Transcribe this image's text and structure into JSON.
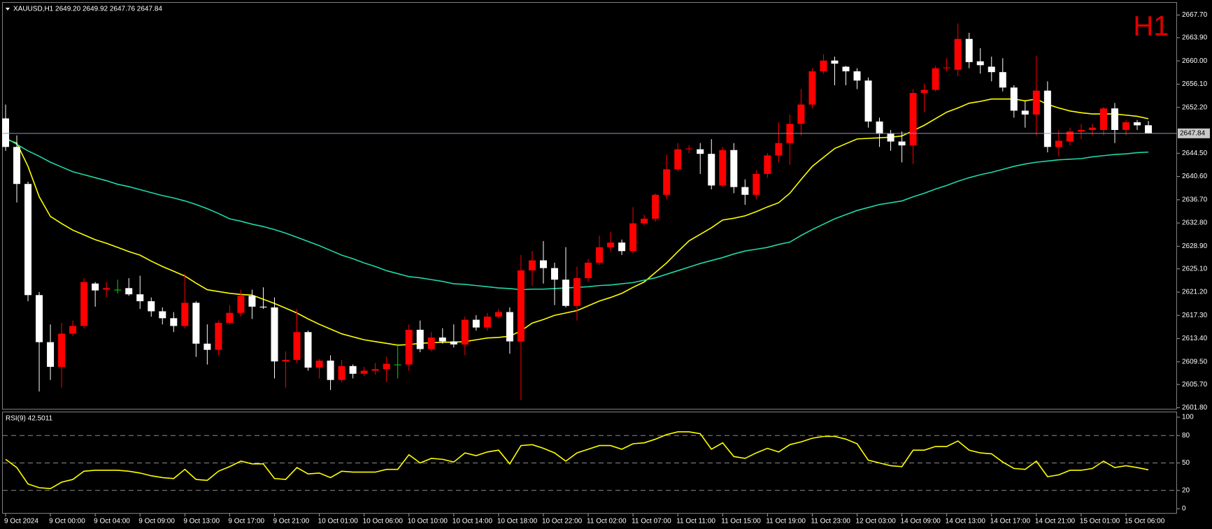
{
  "chart_data": {
    "type": "candlestick",
    "title": "XAUUSD,H1  2649.20 2649.92 2647.76 2647.84",
    "timeframe_badge": "H1",
    "categories": [
      "9 Oct 2024",
      null,
      null,
      null,
      "9 Oct 00:00",
      null,
      null,
      null,
      "9 Oct 04:00",
      null,
      null,
      null,
      "9 Oct 09:00",
      null,
      null,
      null,
      "9 Oct 13:00",
      null,
      null,
      null,
      "9 Oct 17:00",
      null,
      null,
      null,
      "9 Oct 21:00",
      null,
      null,
      null,
      "10 Oct 01:00",
      null,
      null,
      null,
      "10 Oct 06:00",
      null,
      null,
      null,
      "10 Oct 10:00",
      null,
      null,
      null,
      "10 Oct 14:00",
      null,
      null,
      null,
      "10 Oct 18:00",
      null,
      null,
      null,
      "10 Oct 22:00",
      null,
      null,
      null,
      "11 Oct 02:00",
      null,
      null,
      null,
      "11 Oct 07:00",
      null,
      null,
      null,
      "11 Oct 11:00",
      null,
      null,
      null,
      "11 Oct 15:00",
      null,
      null,
      null,
      "11 Oct 19:00",
      null,
      null,
      null,
      "11 Oct 23:00",
      null,
      null,
      null,
      "12 Oct 03:00",
      null,
      null,
      null,
      "14 Oct 09:00",
      null,
      null,
      null,
      "14 Oct 13:00",
      null,
      null,
      null,
      "14 Oct 17:00",
      null,
      null,
      null,
      "14 Oct 21:00",
      null,
      null,
      null,
      "15 Oct 01:00",
      null,
      null,
      null,
      "15 Oct 06:00",
      null,
      null
    ],
    "open": [
      2650.35,
      2645.56,
      2639.35,
      2620.7,
      2612.8,
      2608.66,
      2614.23,
      2615.52,
      2622.64,
      2621.61,
      2621.61,
      2621.87,
      2620.83,
      2619.67,
      2617.98,
      2616.82,
      2615.52,
      2619.41,
      2612.55,
      2611.51,
      2616.04,
      2617.72,
      2620.57,
      2618.76,
      2618.63,
      2609.57,
      2609.83,
      2614.49,
      2608.53,
      2609.7,
      2606.46,
      2608.79,
      2607.5,
      2608.01,
      2608.27,
      2609.05,
      2609.05,
      2614.88,
      2611.64,
      2613.58,
      2612.93,
      2612.42,
      2616.56,
      2615.26,
      2617.08,
      2617.85,
      2612.93,
      2624.85,
      2626.53,
      2625.23,
      2623.29,
      2618.89,
      2623.55,
      2626.14,
      2628.73,
      2629.51,
      2628.08,
      2632.74,
      2633.52,
      2637.53,
      2641.81,
      2645.17,
      2645.17,
      2644.4,
      2639.09,
      2645.04,
      2638.83,
      2637.53,
      2641.03,
      2644.14,
      2646.21,
      2649.44,
      2652.68,
      2658.25,
      2660.06,
      2659.03,
      2658.25,
      2656.7,
      2649.83,
      2647.76,
      2646.47,
      2645.82,
      2654.62,
      2655.14,
      2658.77,
      2658.51,
      2663.69,
      2659.93,
      2659.03,
      2658.12,
      2655.53,
      2651.65,
      2651.0,
      2655.01,
      2645.56,
      2646.47,
      2648.15,
      2648.41,
      2648.41,
      2652.03,
      2648.41,
      2649.7,
      2649.2
    ],
    "high": [
      2652.68,
      2647.5,
      2639.73,
      2621.22,
      2615.78,
      2616.04,
      2616.43,
      2623.55,
      2622.9,
      2622.9,
      2623.29,
      2623.55,
      2623.94,
      2620.31,
      2618.63,
      2617.85,
      2624.2,
      2619.67,
      2615.78,
      2616.43,
      2619.02,
      2621.61,
      2621.61,
      2622.0,
      2620.31,
      2611.25,
      2618.37,
      2614.75,
      2609.96,
      2610.6,
      2609.83,
      2609.05,
      2608.66,
      2609.31,
      2610.34,
      2612.55,
      2615.78,
      2616.43,
      2614.49,
      2615.14,
      2615.78,
      2617.08,
      2617.34,
      2617.72,
      2618.37,
      2618.63,
      2627.43,
      2628.08,
      2629.77,
      2626.14,
      2628.73,
      2625.49,
      2626.79,
      2630.67,
      2631.32,
      2630.02,
      2635.46,
      2634.17,
      2637.79,
      2644.27,
      2646.21,
      2645.82,
      2646.21,
      2646.86,
      2645.56,
      2646.21,
      2640.12,
      2641.68,
      2644.52,
      2649.7,
      2651.0,
      2655.27,
      2658.77,
      2661.1,
      2660.71,
      2659.16,
      2658.77,
      2657.21,
      2650.48,
      2648.41,
      2648.15,
      2655.27,
      2656.18,
      2659.16,
      2660.45,
      2666.28,
      2664.72,
      2662.13,
      2660.71,
      2660.45,
      2655.92,
      2653.33,
      2660.84,
      2656.57,
      2648.41,
      2648.8,
      2649.44,
      2649.44,
      2652.29,
      2652.94,
      2650.09,
      2650.09,
      2649.92
    ],
    "low": [
      2644.91,
      2636.24,
      2619.67,
      2604.52,
      2606.46,
      2605.17,
      2613.84,
      2615.14,
      2618.76,
      2620.31,
      2620.96,
      2620.57,
      2618.37,
      2617.08,
      2615.78,
      2614.49,
      2615.14,
      2610.34,
      2609.05,
      2610.6,
      2615.78,
      2617.08,
      2616.69,
      2618.37,
      2606.72,
      2605.17,
      2609.31,
      2608.01,
      2606.72,
      2604.78,
      2606.07,
      2606.72,
      2607.11,
      2607.37,
      2606.07,
      2606.72,
      2608.01,
      2611.12,
      2611.25,
      2612.55,
      2611.9,
      2610.6,
      2614.75,
      2614.75,
      2616.82,
      2610.86,
      2603.09,
      2622.26,
      2622.64,
      2619.02,
      2618.63,
      2616.43,
      2622.9,
      2625.75,
      2628.08,
      2627.43,
      2627.69,
      2632.35,
      2633.0,
      2636.76,
      2641.42,
      2644.52,
      2641.03,
      2638.44,
      2638.83,
      2637.79,
      2635.85,
      2636.76,
      2640.38,
      2642.97,
      2642.58,
      2647.5,
      2652.03,
      2657.86,
      2655.92,
      2655.92,
      2655.27,
      2648.8,
      2645.56,
      2644.91,
      2642.97,
      2642.71,
      2651.39,
      2654.88,
      2658.25,
      2657.47,
      2658.77,
      2657.86,
      2656.57,
      2654.88,
      2650.48,
      2648.8,
      2647.5,
      2644.65,
      2644.01,
      2645.82,
      2646.86,
      2647.5,
      2647.5,
      2646.21,
      2647.5,
      2648.41,
      2647.76
    ],
    "close": [
      2645.56,
      2639.35,
      2620.7,
      2612.8,
      2608.66,
      2614.23,
      2615.52,
      2622.9,
      2621.48,
      2621.87,
      2621.61,
      2620.83,
      2619.67,
      2617.98,
      2616.82,
      2615.52,
      2619.41,
      2612.55,
      2611.51,
      2616.04,
      2617.72,
      2620.57,
      2618.76,
      2618.63,
      2609.57,
      2609.83,
      2614.49,
      2608.53,
      2609.7,
      2606.46,
      2608.79,
      2607.5,
      2608.01,
      2608.27,
      2609.18,
      2609.05,
      2614.88,
      2611.64,
      2613.58,
      2612.93,
      2612.42,
      2616.56,
      2615.26,
      2617.08,
      2617.85,
      2612.93,
      2624.85,
      2626.53,
      2625.23,
      2623.29,
      2618.89,
      2623.55,
      2626.14,
      2628.73,
      2629.51,
      2628.08,
      2632.74,
      2633.52,
      2637.53,
      2641.81,
      2645.17,
      2645.3,
      2644.4,
      2639.09,
      2645.04,
      2638.83,
      2637.53,
      2641.03,
      2644.14,
      2646.21,
      2649.44,
      2652.68,
      2658.25,
      2660.06,
      2659.54,
      2658.25,
      2656.7,
      2649.83,
      2647.76,
      2646.47,
      2645.82,
      2654.62,
      2655.14,
      2658.77,
      2658.9,
      2663.69,
      2659.8,
      2659.28,
      2658.12,
      2655.53,
      2651.65,
      2651.0,
      2655.01,
      2645.56,
      2646.6,
      2648.15,
      2648.41,
      2648.8,
      2652.03,
      2648.41,
      2649.7,
      2649.19,
      2647.84
    ],
    "up_color": "#ff0000",
    "down_color": "#ffffff",
    "doji_color": "#00e000",
    "moving_averages": [
      {
        "color": "#ffff00",
        "values": [
          2646.9,
          2646.2,
          2642.3,
          2637.2,
          2633.9,
          2632.7,
          2631.6,
          2630.8,
          2630.0,
          2629.4,
          2628.7,
          2628.0,
          2627.4,
          2626.4,
          2625.5,
          2624.7,
          2623.9,
          2622.7,
          2621.6,
          2621.3,
          2621.0,
          2620.8,
          2620.7,
          2620.0,
          2619.3,
          2618.5,
          2617.7,
          2616.7,
          2615.8,
          2615.0,
          2614.2,
          2613.7,
          2613.2,
          2612.9,
          2612.6,
          2612.3,
          2612.4,
          2612.6,
          2612.7,
          2612.8,
          2612.8,
          2612.9,
          2613.2,
          2613.5,
          2613.6,
          2613.8,
          2614.7,
          2616.0,
          2616.6,
          2617.3,
          2617.7,
          2618.1,
          2618.9,
          2619.7,
          2620.3,
          2621.0,
          2622.0,
          2622.9,
          2624.5,
          2626.1,
          2628.0,
          2629.8,
          2630.9,
          2632.0,
          2633.3,
          2633.6,
          2634.0,
          2634.7,
          2635.5,
          2636.2,
          2637.8,
          2640.1,
          2642.3,
          2643.8,
          2645.3,
          2646.1,
          2646.9,
          2647.0,
          2647.1,
          2647.2,
          2647.4,
          2648.3,
          2649.2,
          2650.3,
          2651.4,
          2652.1,
          2652.9,
          2653.2,
          2653.6,
          2653.6,
          2653.6,
          2653.3,
          2653.6,
          2652.7,
          2652.1,
          2651.6,
          2651.3,
          2651.1,
          2651.1,
          2651.1,
          2650.9,
          2650.7,
          2650.3
        ]
      },
      {
        "color": "#20d8a8",
        "values": [
          2647.1,
          2646.0,
          2644.9,
          2644.0,
          2643.0,
          2642.2,
          2641.4,
          2640.9,
          2640.4,
          2639.9,
          2639.3,
          2638.9,
          2638.4,
          2637.9,
          2637.4,
          2637.0,
          2636.5,
          2635.9,
          2635.2,
          2634.4,
          2633.5,
          2633.1,
          2632.6,
          2632.2,
          2631.7,
          2631.1,
          2630.4,
          2629.7,
          2629.0,
          2628.2,
          2627.4,
          2626.8,
          2626.1,
          2625.5,
          2624.8,
          2624.3,
          2623.8,
          2623.6,
          2623.3,
          2623.0,
          2622.6,
          2622.5,
          2622.3,
          2622.1,
          2621.9,
          2621.8,
          2621.6,
          2621.7,
          2621.7,
          2621.8,
          2621.9,
          2622.0,
          2622.1,
          2622.3,
          2622.4,
          2622.6,
          2622.8,
          2623.2,
          2623.6,
          2624.2,
          2624.8,
          2625.4,
          2626.0,
          2626.5,
          2627.0,
          2627.6,
          2628.1,
          2628.4,
          2628.7,
          2629.2,
          2629.6,
          2630.7,
          2631.7,
          2632.6,
          2633.5,
          2634.2,
          2634.9,
          2635.4,
          2635.9,
          2636.2,
          2636.5,
          2637.2,
          2637.8,
          2638.5,
          2639.1,
          2639.8,
          2640.4,
          2640.9,
          2641.3,
          2641.8,
          2642.3,
          2642.7,
          2643.0,
          2643.2,
          2643.4,
          2643.5,
          2643.6,
          2643.9,
          2644.1,
          2644.3,
          2644.4,
          2644.6,
          2644.7
        ]
      }
    ],
    "ylim": [
      2601.5,
      2669.4
    ],
    "yticks": [
      {
        "value": 2601.8,
        "label": "2601.80"
      },
      {
        "value": 2605.7,
        "label": "2605.70"
      },
      {
        "value": 2609.5,
        "label": "2609.50"
      },
      {
        "value": 2613.4,
        "label": "2613.40"
      },
      {
        "value": 2617.3,
        "label": "2617.30"
      },
      {
        "value": 2621.2,
        "label": "2621.20"
      },
      {
        "value": 2625.1,
        "label": "2625.10"
      },
      {
        "value": 2628.9,
        "label": "2628.90"
      },
      {
        "value": 2632.8,
        "label": "2632.80"
      },
      {
        "value": 2636.7,
        "label": "2636.70"
      },
      {
        "value": 2640.6,
        "label": "2640.60"
      },
      {
        "value": 2644.5,
        "label": "2644.50"
      },
      {
        "value": 2652.2,
        "label": "2652.20"
      },
      {
        "value": 2656.1,
        "label": "2656.10"
      },
      {
        "value": 2660,
        "label": "2660.00"
      },
      {
        "value": 2663.9,
        "label": "2663.90"
      },
      {
        "value": 2667.7,
        "label": "2667.70"
      }
    ],
    "last_price": 2647.84,
    "rsi": {
      "label": "RSI(9) 42.5011",
      "color": "#ffff00",
      "values": [
        54,
        45,
        27,
        23,
        22,
        29,
        32,
        41,
        42,
        42,
        42,
        41,
        39,
        36,
        34,
        33,
        43,
        32,
        31,
        41,
        46,
        52,
        49,
        49,
        33,
        32,
        45,
        38,
        39,
        34,
        41,
        40,
        40,
        40,
        43,
        43,
        59,
        50,
        55,
        54,
        51,
        61,
        58,
        62,
        64,
        49,
        69,
        70,
        66,
        61,
        52,
        61,
        65,
        69,
        69,
        65,
        71,
        72,
        76,
        81,
        84,
        84,
        82,
        65,
        72,
        57,
        55,
        61,
        66,
        62,
        70,
        73,
        77,
        79,
        79,
        76,
        71,
        53,
        50,
        47,
        46,
        64,
        64,
        68,
        68,
        74,
        64,
        61,
        60,
        51,
        44,
        43,
        52,
        35,
        37,
        42,
        42,
        44,
        52,
        45,
        47,
        45,
        42.5011
      ],
      "ylim": [
        0,
        100
      ],
      "yticks": [
        0,
        20,
        50,
        80,
        100
      ],
      "levels": [
        20,
        50,
        80
      ]
    }
  }
}
